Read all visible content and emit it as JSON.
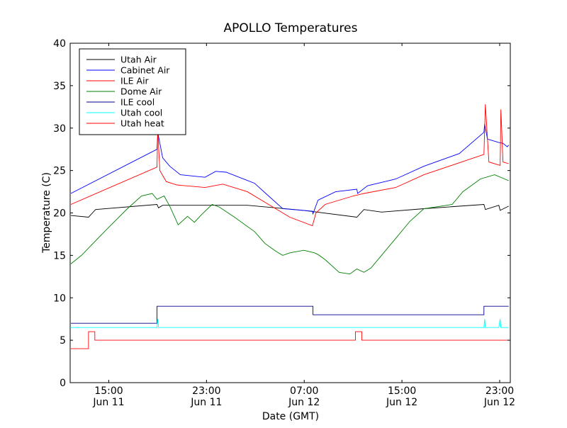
{
  "chart_data": {
    "type": "line",
    "title": "APOLLO Temperatures",
    "xlabel": "Date (GMT)",
    "ylabel": "Temperature (C)",
    "x_units": "hours since Jun 11 00:00 GMT",
    "xlim": [
      11.84,
      47.87
    ],
    "ylim": [
      0,
      40
    ],
    "yticks": [
      0,
      5,
      10,
      15,
      20,
      25,
      30,
      35,
      40
    ],
    "xticks": [
      {
        "value": 15,
        "time": "15:00",
        "date": "Jun 11"
      },
      {
        "value": 23,
        "time": "23:00",
        "date": "Jun 11"
      },
      {
        "value": 31,
        "time": "07:00",
        "date": "Jun 12"
      },
      {
        "value": 39,
        "time": "15:00",
        "date": "Jun 12"
      },
      {
        "value": 47,
        "time": "23:00",
        "date": "Jun 12"
      }
    ],
    "grid": false,
    "legend_position": "top-left",
    "series": [
      {
        "name": "Utah Air",
        "color": "#000000",
        "points": [
          [
            11.9,
            19.7
          ],
          [
            13.34,
            19.5
          ],
          [
            13.92,
            20.4
          ],
          [
            18.95,
            21.0
          ],
          [
            19.07,
            20.6
          ],
          [
            19.41,
            20.9
          ],
          [
            26.35,
            20.9
          ],
          [
            30.97,
            20.3
          ],
          [
            35.31,
            19.5
          ],
          [
            35.89,
            20.4
          ],
          [
            37.33,
            20.1
          ],
          [
            40.8,
            20.5
          ],
          [
            45.71,
            21.0
          ],
          [
            45.83,
            20.4
          ],
          [
            46.93,
            20.9
          ],
          [
            47.04,
            20.3
          ],
          [
            47.74,
            20.8
          ]
        ]
      },
      {
        "name": "Cabinet Air",
        "color": "#0000ff",
        "points": [
          [
            11.9,
            22.3
          ],
          [
            18.95,
            27.5
          ],
          [
            19.01,
            29.5
          ],
          [
            19.41,
            26.5
          ],
          [
            19.99,
            25.5
          ],
          [
            20.86,
            24.5
          ],
          [
            22.88,
            24.2
          ],
          [
            23.75,
            24.9
          ],
          [
            24.61,
            24.8
          ],
          [
            26.93,
            23.5
          ],
          [
            28.08,
            22.0
          ],
          [
            29.24,
            20.5
          ],
          [
            31.67,
            20.2
          ],
          [
            31.72,
            19.9
          ],
          [
            32.13,
            21.5
          ],
          [
            33.57,
            22.5
          ],
          [
            35.31,
            22.8
          ],
          [
            35.37,
            22.3
          ],
          [
            36.18,
            23.2
          ],
          [
            38.49,
            24.0
          ],
          [
            40.8,
            25.5
          ],
          [
            43.69,
            27.0
          ],
          [
            45.71,
            29.5
          ],
          [
            45.77,
            30.5
          ],
          [
            46.0,
            28.7
          ],
          [
            46.93,
            28.3
          ],
          [
            47.27,
            28.2
          ],
          [
            47.62,
            27.8
          ],
          [
            47.74,
            28.0
          ]
        ]
      },
      {
        "name": "ILE Air",
        "color": "#ff0000",
        "points": [
          [
            11.9,
            21.0
          ],
          [
            18.95,
            25.4
          ],
          [
            19.01,
            29.8
          ],
          [
            19.18,
            25.0
          ],
          [
            19.7,
            23.7
          ],
          [
            20.57,
            23.3
          ],
          [
            22.88,
            23.0
          ],
          [
            24.33,
            23.4
          ],
          [
            26.35,
            22.5
          ],
          [
            28.08,
            21.0
          ],
          [
            29.82,
            19.5
          ],
          [
            31.67,
            18.5
          ],
          [
            31.96,
            20.0
          ],
          [
            32.71,
            21.0
          ],
          [
            35.02,
            22.0
          ],
          [
            35.89,
            22.3
          ],
          [
            38.49,
            23.0
          ],
          [
            40.8,
            24.5
          ],
          [
            45.71,
            26.9
          ],
          [
            45.83,
            32.8
          ],
          [
            46.12,
            26.0
          ],
          [
            47.04,
            25.6
          ],
          [
            47.1,
            32.2
          ],
          [
            47.27,
            26.0
          ],
          [
            47.74,
            25.8
          ]
        ]
      },
      {
        "name": "Dome Air",
        "color": "#008000",
        "points": [
          [
            11.9,
            14.0
          ],
          [
            12.76,
            15.0
          ],
          [
            14.79,
            18.0
          ],
          [
            16.52,
            20.5
          ],
          [
            17.68,
            22.0
          ],
          [
            18.55,
            22.3
          ],
          [
            18.95,
            21.6
          ],
          [
            19.53,
            22.0
          ],
          [
            19.99,
            20.8
          ],
          [
            20.68,
            18.6
          ],
          [
            21.44,
            19.6
          ],
          [
            22.01,
            18.9
          ],
          [
            22.59,
            19.8
          ],
          [
            23.46,
            21.0
          ],
          [
            24.04,
            20.7
          ],
          [
            25.19,
            19.6
          ],
          [
            26.93,
            17.8
          ],
          [
            27.79,
            16.4
          ],
          [
            28.66,
            15.5
          ],
          [
            29.24,
            15.0
          ],
          [
            29.82,
            15.3
          ],
          [
            30.97,
            15.6
          ],
          [
            31.84,
            15.3
          ],
          [
            32.13,
            15.1
          ],
          [
            32.71,
            14.5
          ],
          [
            33.86,
            13.0
          ],
          [
            34.73,
            12.8
          ],
          [
            35.31,
            13.4
          ],
          [
            35.89,
            13.0
          ],
          [
            36.46,
            13.5
          ],
          [
            37.33,
            15.0
          ],
          [
            38.49,
            17.0
          ],
          [
            39.64,
            19.0
          ],
          [
            40.8,
            20.5
          ],
          [
            43.11,
            21.0
          ],
          [
            43.98,
            22.5
          ],
          [
            45.42,
            24.0
          ],
          [
            46.58,
            24.5
          ],
          [
            47.74,
            23.8
          ]
        ]
      },
      {
        "name": "ILE cool",
        "color": "#00008b",
        "points": [
          [
            11.9,
            7
          ],
          [
            18.95,
            7
          ],
          [
            18.95,
            9
          ],
          [
            31.72,
            9
          ],
          [
            31.72,
            8
          ],
          [
            45.71,
            8
          ],
          [
            45.71,
            9
          ],
          [
            47.74,
            9
          ]
        ]
      },
      {
        "name": "Utah cool",
        "color": "#00ffff",
        "points": [
          [
            11.9,
            6.5
          ],
          [
            18.95,
            6.5
          ],
          [
            19.01,
            7.5
          ],
          [
            19.07,
            6.5
          ],
          [
            45.71,
            6.5
          ],
          [
            45.77,
            7.5
          ],
          [
            45.83,
            6.5
          ],
          [
            46.93,
            6.5
          ],
          [
            47.04,
            7.5
          ],
          [
            47.1,
            6.5
          ],
          [
            47.74,
            6.5
          ]
        ]
      },
      {
        "name": "Utah heat",
        "color": "#ff0000",
        "points": [
          [
            11.9,
            4
          ],
          [
            13.34,
            4
          ],
          [
            13.34,
            6
          ],
          [
            13.86,
            6
          ],
          [
            13.86,
            5
          ],
          [
            35.19,
            5
          ],
          [
            35.19,
            6
          ],
          [
            35.71,
            6
          ],
          [
            35.71,
            5
          ],
          [
            47.74,
            5
          ]
        ]
      }
    ]
  }
}
